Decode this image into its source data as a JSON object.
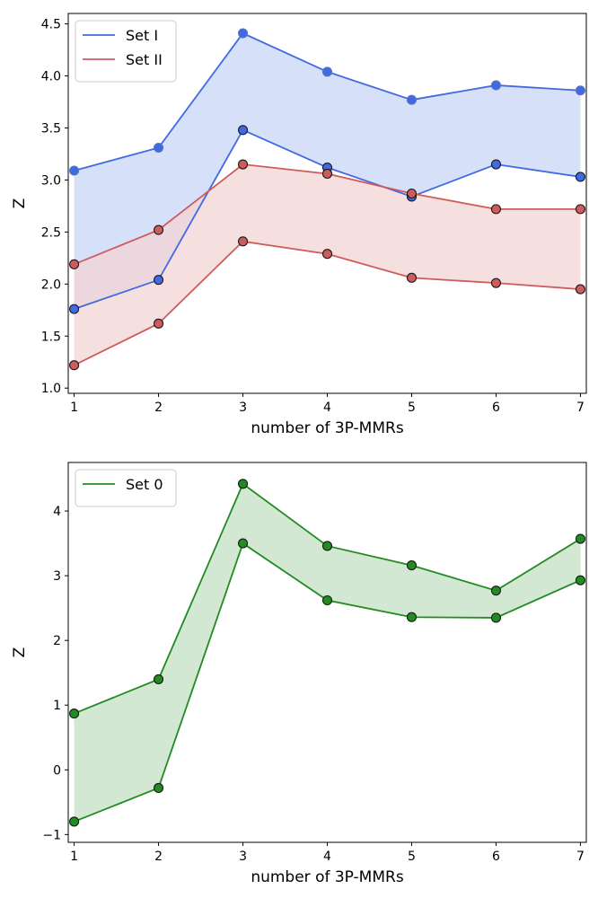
{
  "chart_data": [
    {
      "type": "line",
      "title": "",
      "xlabel": "number of 3P-MMRs",
      "ylabel": "Z",
      "x": [
        1,
        2,
        3,
        4,
        5,
        6,
        7
      ],
      "xlim": [
        0.93,
        7.07
      ],
      "ylim": [
        0.95,
        4.6
      ],
      "xticks": [
        "1",
        "2",
        "3",
        "4",
        "5",
        "6",
        "7"
      ],
      "yticks": [
        "1.0",
        "1.5",
        "2.0",
        "2.5",
        "3.0",
        "3.5",
        "4.0",
        "4.5"
      ],
      "legend_position": "top-left",
      "series": [
        {
          "name": "Set I",
          "color": "#4169e1",
          "fill": "#d6e0f8",
          "upper": [
            3.09,
            3.31,
            4.41,
            4.04,
            3.77,
            3.91,
            3.86
          ],
          "lower": [
            1.76,
            2.04,
            3.48,
            3.12,
            2.84,
            3.15,
            3.03
          ]
        },
        {
          "name": "Set II",
          "color": "#cd5c5c",
          "fill": "#f3d3d3",
          "upper": [
            2.19,
            2.52,
            3.15,
            3.06,
            2.87,
            2.72,
            2.72
          ],
          "lower": [
            1.22,
            1.62,
            2.41,
            2.29,
            2.06,
            2.01,
            1.95
          ]
        }
      ]
    },
    {
      "type": "line",
      "title": "",
      "xlabel": "number of 3P-MMRs",
      "ylabel": "Z",
      "x": [
        1,
        2,
        3,
        4,
        5,
        6,
        7
      ],
      "xlim": [
        0.93,
        7.07
      ],
      "ylim": [
        -1.12,
        4.75
      ],
      "xticks": [
        "1",
        "2",
        "3",
        "4",
        "5",
        "6",
        "7"
      ],
      "yticks": [
        "−1",
        "0",
        "1",
        "2",
        "3",
        "4"
      ],
      "legend_position": "top-left",
      "series": [
        {
          "name": "Set 0",
          "color": "#228b22",
          "fill": "#d2e8d2",
          "upper": [
            0.87,
            1.4,
            4.42,
            3.46,
            3.16,
            2.77,
            3.57
          ],
          "lower": [
            -0.8,
            -0.28,
            3.5,
            2.62,
            2.36,
            2.35,
            2.93
          ]
        }
      ]
    }
  ]
}
